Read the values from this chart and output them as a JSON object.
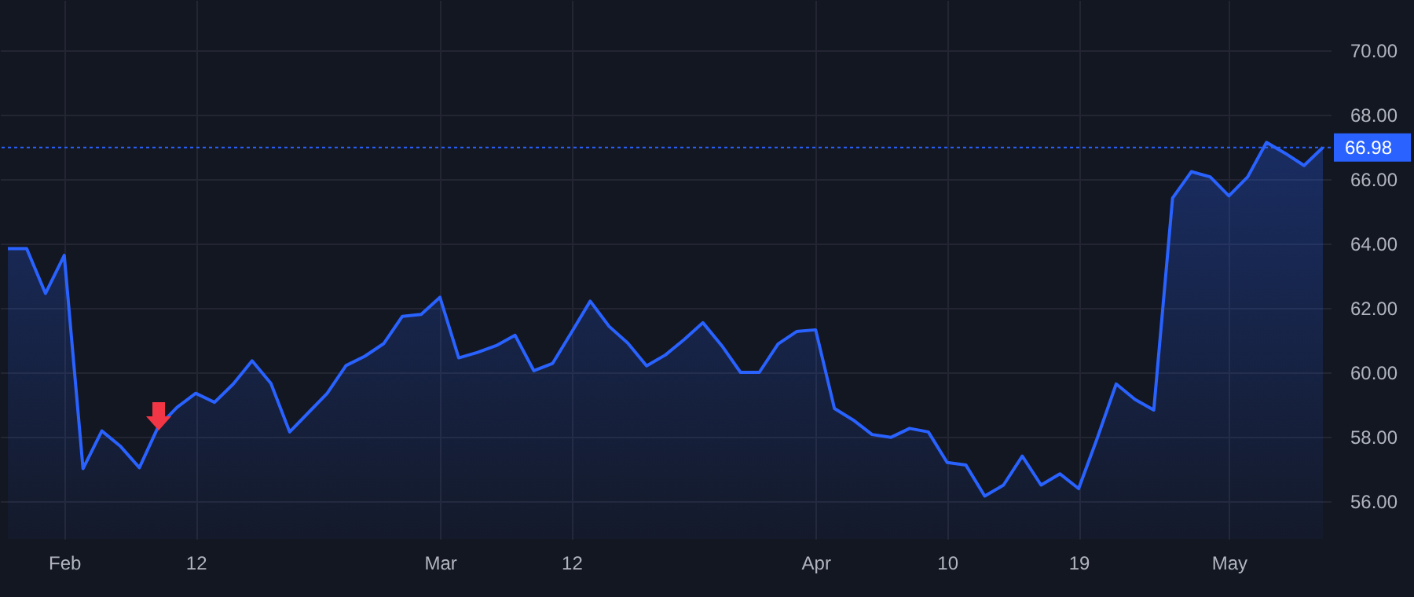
{
  "chart_data": {
    "type": "area",
    "categories": [
      null,
      null,
      null,
      "Feb",
      null,
      null,
      null,
      null,
      null,
      null,
      "12",
      null,
      null,
      null,
      null,
      null,
      null,
      null,
      null,
      null,
      null,
      null,
      null,
      "Mar",
      null,
      null,
      null,
      null,
      null,
      null,
      "12",
      null,
      null,
      null,
      null,
      null,
      null,
      null,
      null,
      null,
      null,
      null,
      null,
      "Apr",
      null,
      null,
      null,
      null,
      null,
      null,
      "10",
      null,
      null,
      null,
      null,
      null,
      null,
      "19",
      null,
      null,
      null,
      null,
      null,
      null,
      null,
      "May",
      null,
      null,
      null,
      null,
      null
    ],
    "series": [
      {
        "color": "#2962ff",
        "values": [
          63.84,
          63.84,
          62.45,
          63.63,
          57.01,
          58.18,
          57.7,
          57.04,
          58.31,
          58.91,
          59.35,
          59.07,
          59.64,
          60.36,
          59.66,
          58.15,
          58.75,
          59.35,
          60.21,
          60.5,
          60.89,
          61.74,
          61.8,
          62.33,
          60.45,
          60.62,
          60.83,
          61.15,
          60.05,
          60.28,
          61.24,
          62.21,
          61.43,
          60.91,
          60.2,
          60.54,
          61.02,
          61.54,
          60.83,
          60.0,
          60.0,
          60.88,
          61.27,
          61.32,
          58.88,
          58.52,
          58.07,
          57.98,
          58.26,
          58.15,
          57.2,
          57.12,
          56.16,
          56.5,
          57.4,
          56.5,
          56.85,
          56.39,
          57.97,
          59.64,
          59.16,
          58.83,
          65.41,
          66.23,
          66.07,
          65.48,
          66.07,
          67.14,
          66.8,
          66.42,
          66.98
        ]
      }
    ],
    "ylim": [
      54.83,
      71.56
    ],
    "yticks": [
      {
        "value": 56,
        "label": "56.00"
      },
      {
        "value": 58,
        "label": "58.00"
      },
      {
        "value": 60,
        "label": "60.00"
      },
      {
        "value": 62,
        "label": "62.00"
      },
      {
        "value": 64,
        "label": "64.00"
      },
      {
        "value": 66,
        "label": "66.00"
      },
      {
        "value": 68,
        "label": "68.00"
      },
      {
        "value": 70,
        "label": "70.00"
      }
    ],
    "ref_lines": [
      {
        "axis": "y",
        "value": 66.98,
        "label": "66.98",
        "color": "#2962ff",
        "line_style": "dotted"
      }
    ],
    "grid": true
  }
}
